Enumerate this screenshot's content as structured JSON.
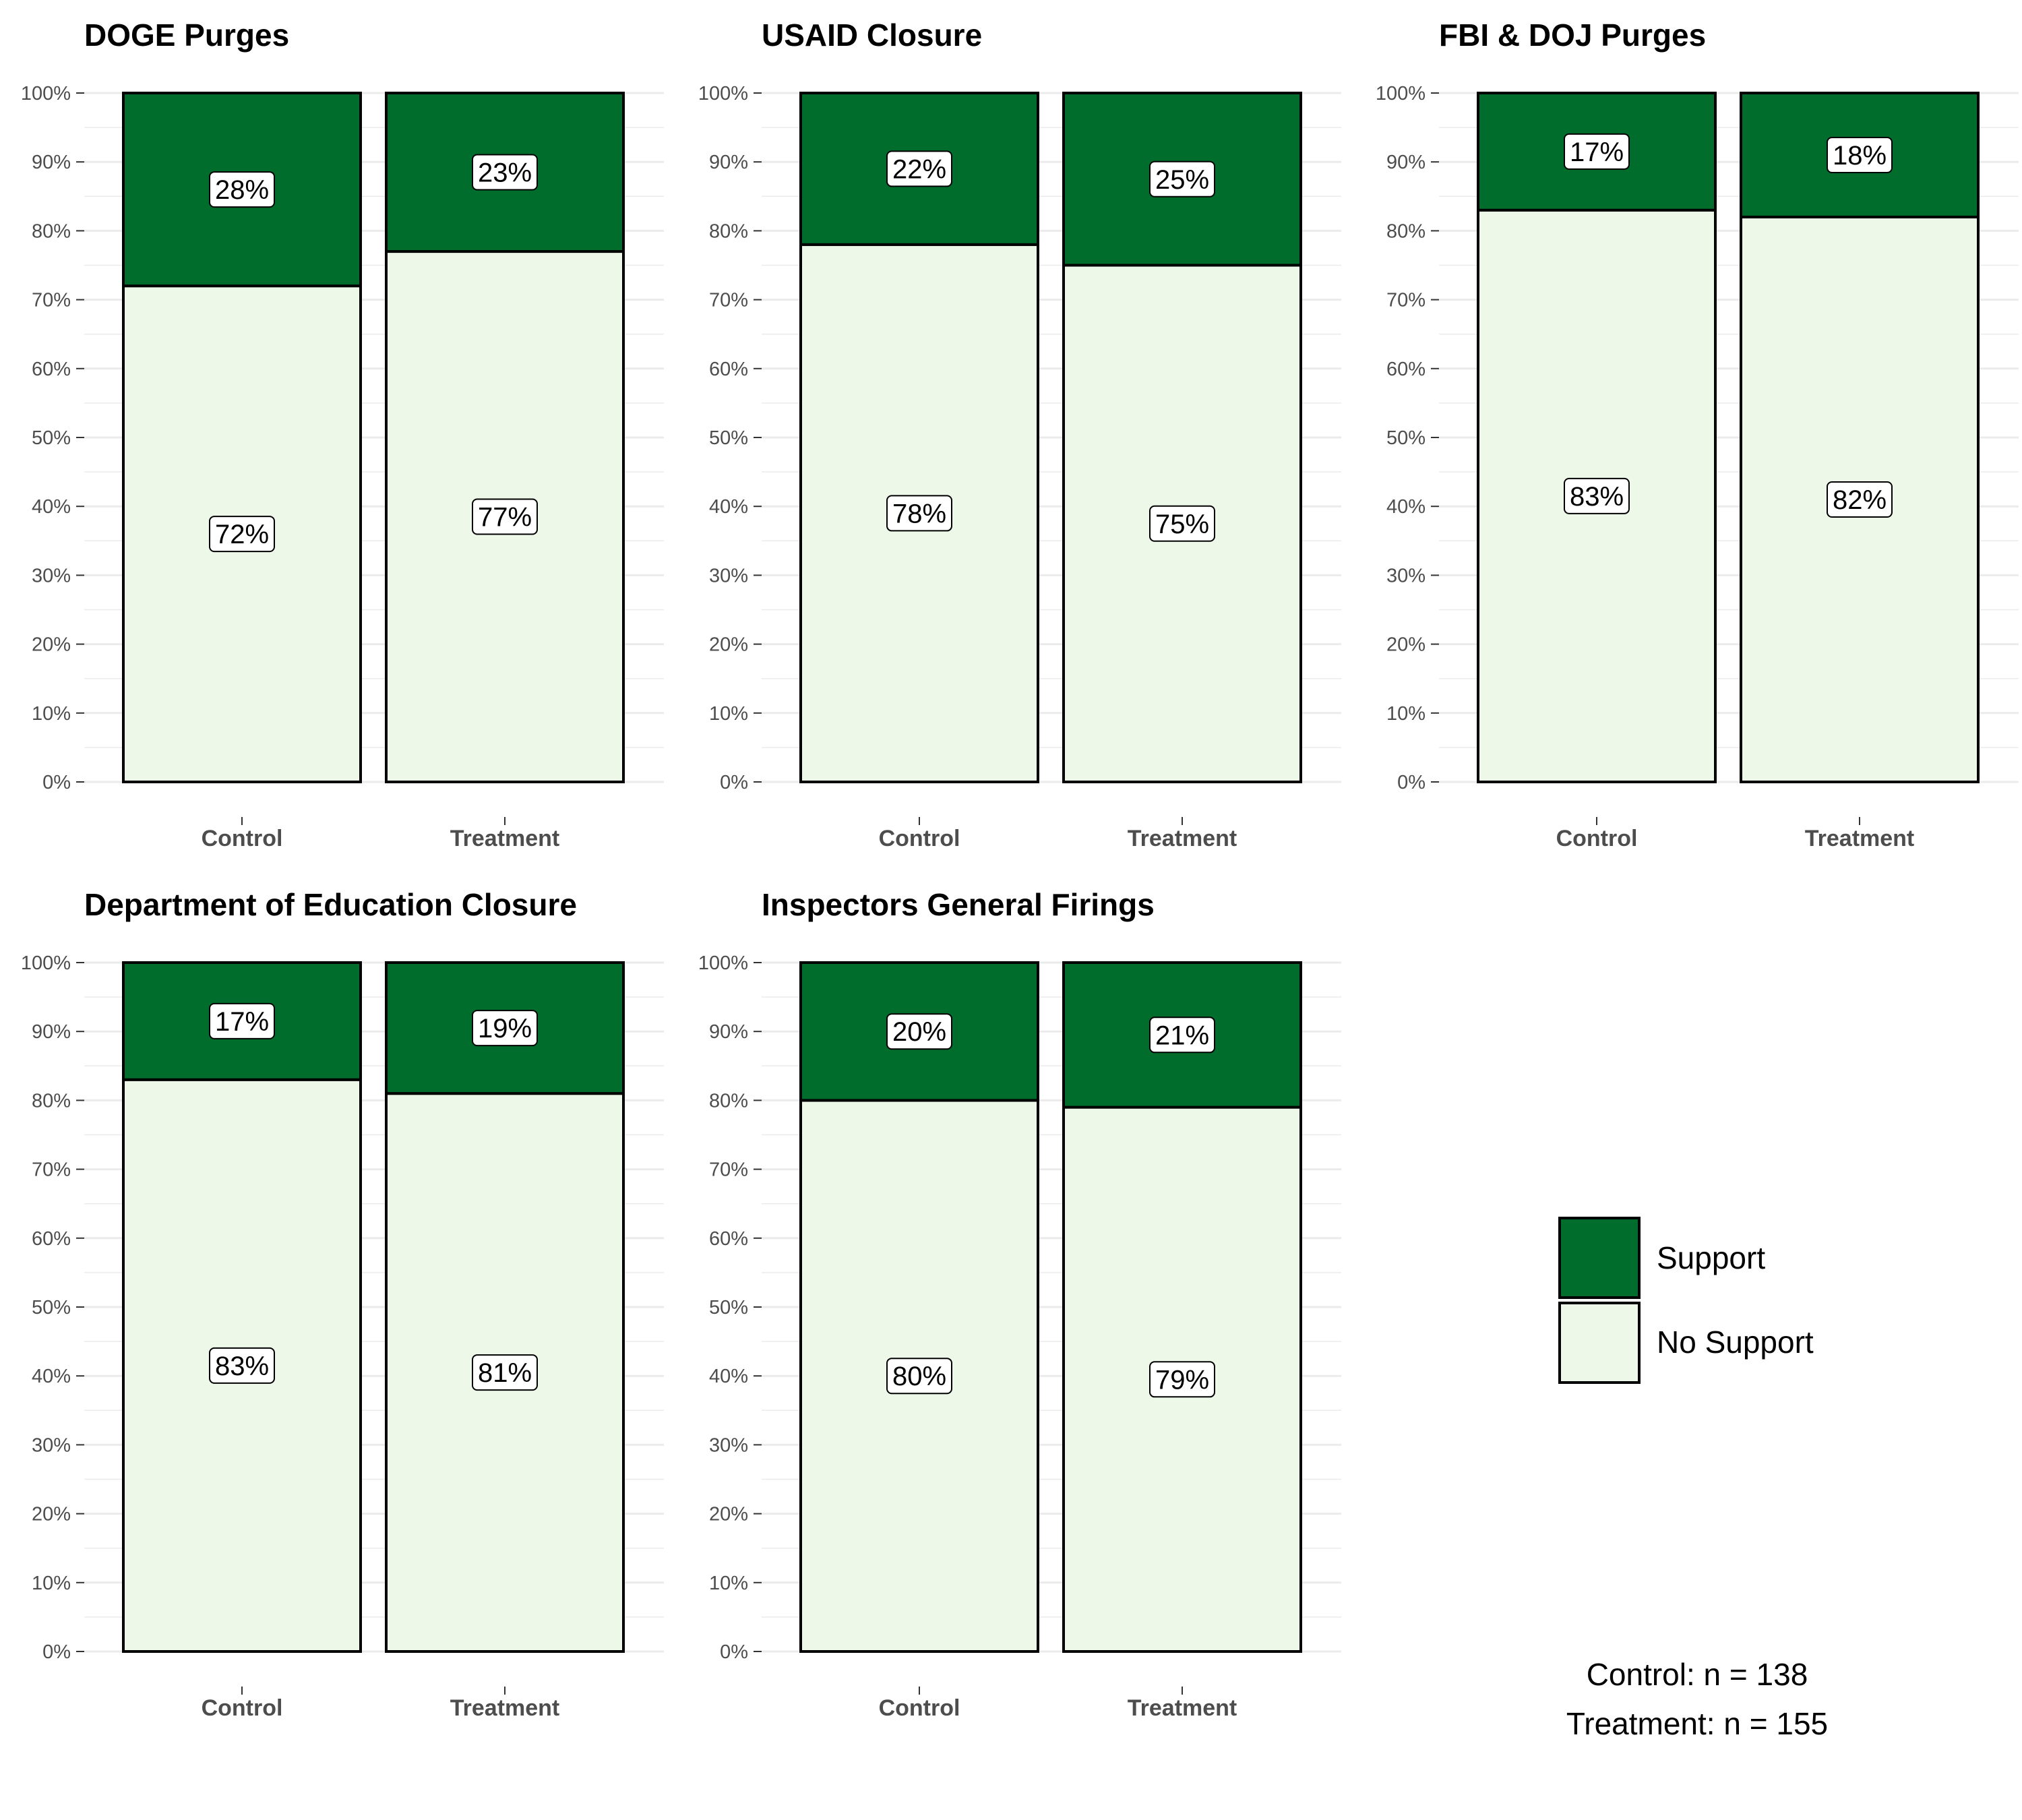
{
  "colors": {
    "support": "#006d2c",
    "no_support": "#edf8e9",
    "outline": "#000000",
    "grid": "#ebebeb"
  },
  "y_tick_labels": [
    "0%",
    "10%",
    "20%",
    "30%",
    "40%",
    "50%",
    "60%",
    "70%",
    "80%",
    "90%",
    "100%"
  ],
  "chart_data": [
    {
      "type": "bar",
      "stacked": true,
      "title": "DOGE Purges",
      "categories": [
        "Control",
        "Treatment"
      ],
      "series": [
        {
          "name": "No Support",
          "values": [
            72,
            77
          ],
          "labels": [
            "72%",
            "77%"
          ]
        },
        {
          "name": "Support",
          "values": [
            28,
            23
          ],
          "labels": [
            "28%",
            "23%"
          ]
        }
      ],
      "ylim": [
        0,
        100
      ]
    },
    {
      "type": "bar",
      "stacked": true,
      "title": "USAID Closure",
      "categories": [
        "Control",
        "Treatment"
      ],
      "series": [
        {
          "name": "No Support",
          "values": [
            78,
            75
          ],
          "labels": [
            "78%",
            "75%"
          ]
        },
        {
          "name": "Support",
          "values": [
            22,
            25
          ],
          "labels": [
            "22%",
            "25%"
          ]
        }
      ],
      "ylim": [
        0,
        100
      ]
    },
    {
      "type": "bar",
      "stacked": true,
      "title": "FBI & DOJ Purges",
      "categories": [
        "Control",
        "Treatment"
      ],
      "series": [
        {
          "name": "No Support",
          "values": [
            83,
            82
          ],
          "labels": [
            "83%",
            "82%"
          ]
        },
        {
          "name": "Support",
          "values": [
            17,
            18
          ],
          "labels": [
            "17%",
            "18%"
          ]
        }
      ],
      "ylim": [
        0,
        100
      ]
    },
    {
      "type": "bar",
      "stacked": true,
      "title": "Department of Education Closure",
      "categories": [
        "Control",
        "Treatment"
      ],
      "series": [
        {
          "name": "No Support",
          "values": [
            83,
            81
          ],
          "labels": [
            "83%",
            "81%"
          ]
        },
        {
          "name": "Support",
          "values": [
            17,
            19
          ],
          "labels": [
            "17%",
            "19%"
          ]
        }
      ],
      "ylim": [
        0,
        100
      ]
    },
    {
      "type": "bar",
      "stacked": true,
      "title": "Inspectors General Firings",
      "categories": [
        "Control",
        "Treatment"
      ],
      "series": [
        {
          "name": "No Support",
          "values": [
            80,
            79
          ],
          "labels": [
            "80%",
            "79%"
          ]
        },
        {
          "name": "Support",
          "values": [
            20,
            21
          ],
          "labels": [
            "20%",
            "21%"
          ]
        }
      ],
      "ylim": [
        0,
        100
      ]
    }
  ],
  "legend": {
    "items": [
      {
        "label": "Support",
        "key": "support"
      },
      {
        "label": "No Support",
        "key": "no_support"
      }
    ]
  },
  "sample_notes": [
    "Control: n = 138",
    "Treatment: n = 155"
  ]
}
